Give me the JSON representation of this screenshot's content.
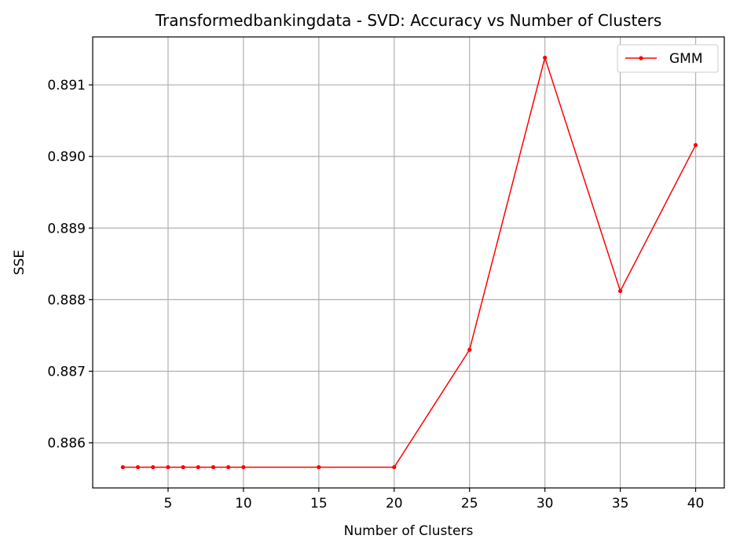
{
  "chart_data": {
    "type": "line",
    "title": "Transformedbankingdata - SVD: Accuracy vs Number of Clusters",
    "xlabel": "Number of Clusters",
    "ylabel": "SSE",
    "xlim": [
      0,
      41.9
    ],
    "ylim": [
      0.88537,
      0.89167
    ],
    "xticks": [
      5,
      10,
      15,
      20,
      25,
      30,
      35,
      40
    ],
    "yticks": [
      0.886,
      0.887,
      0.888,
      0.889,
      0.89,
      0.891
    ],
    "ytick_labels": [
      "0.886",
      "0.887",
      "0.888",
      "0.889",
      "0.890",
      "0.891"
    ],
    "grid": true,
    "legend_position": "top-right",
    "series": [
      {
        "name": "GMM",
        "color": "#ff0000",
        "marker": "dot",
        "x": [
          2,
          3,
          4,
          5,
          6,
          7,
          8,
          9,
          10,
          15,
          20,
          25,
          30,
          35,
          40
        ],
        "y": [
          0.88566,
          0.88566,
          0.88566,
          0.88566,
          0.88566,
          0.88566,
          0.88566,
          0.88566,
          0.88566,
          0.88566,
          0.88566,
          0.8873,
          0.89138,
          0.88812,
          0.89016
        ]
      }
    ]
  }
}
